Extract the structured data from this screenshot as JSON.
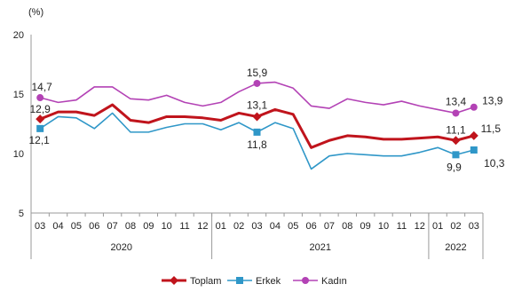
{
  "chart_data": {
    "type": "line",
    "y_unit_label": "(%)",
    "ylim": [
      5,
      20
    ],
    "yticks": [
      5,
      10,
      15,
      20
    ],
    "grid": false,
    "legend_position": "bottom",
    "categories": [
      "03",
      "04",
      "05",
      "06",
      "07",
      "08",
      "09",
      "10",
      "11",
      "12",
      "01",
      "02",
      "03",
      "04",
      "05",
      "06",
      "07",
      "08",
      "09",
      "10",
      "11",
      "12",
      "01",
      "02",
      "03"
    ],
    "year_groups": [
      {
        "label": "2020",
        "start": 0,
        "end": 9
      },
      {
        "label": "2021",
        "start": 10,
        "end": 21
      },
      {
        "label": "2022",
        "start": 22,
        "end": 24
      }
    ],
    "series": [
      {
        "name": "Toplam",
        "color": "#c0141c",
        "marker": "diamond",
        "values": [
          12.9,
          13.5,
          13.5,
          13.2,
          14.1,
          12.8,
          12.6,
          13.1,
          13.1,
          13.0,
          12.8,
          13.4,
          13.1,
          13.7,
          13.3,
          10.5,
          11.1,
          11.5,
          11.4,
          11.2,
          11.2,
          11.3,
          11.4,
          11.1,
          11.5
        ],
        "markers_at": [
          0,
          12,
          23,
          24
        ],
        "labels": [
          {
            "index": 0,
            "text": "12,9"
          },
          {
            "index": 12,
            "text": "13,1"
          },
          {
            "index": 23,
            "text": "11,1"
          },
          {
            "index": 24,
            "text": "11,5"
          }
        ]
      },
      {
        "name": "Erkek",
        "color": "#2f97c8",
        "marker": "square",
        "values": [
          12.1,
          13.1,
          13.0,
          12.1,
          13.4,
          11.8,
          11.8,
          12.2,
          12.5,
          12.5,
          12.0,
          12.6,
          11.8,
          12.6,
          12.1,
          8.7,
          9.8,
          10.0,
          9.9,
          9.8,
          9.8,
          10.1,
          10.5,
          9.9,
          10.3
        ],
        "markers_at": [
          0,
          12,
          23,
          24
        ],
        "labels": [
          {
            "index": 0,
            "text": "12,1"
          },
          {
            "index": 12,
            "text": "11,8"
          },
          {
            "index": 23,
            "text": "9,9"
          },
          {
            "index": 24,
            "text": "10,3"
          }
        ]
      },
      {
        "name": "Kadın",
        "color": "#b342b5",
        "marker": "circle",
        "values": [
          14.7,
          14.3,
          14.5,
          15.6,
          15.6,
          14.6,
          14.5,
          14.9,
          14.3,
          14.0,
          14.3,
          15.2,
          15.9,
          16.0,
          15.5,
          14.0,
          13.8,
          14.6,
          14.3,
          14.1,
          14.4,
          14.0,
          13.7,
          13.4,
          13.9
        ],
        "markers_at": [
          0,
          12,
          23,
          24
        ],
        "labels": [
          {
            "index": 0,
            "text": "14,7"
          },
          {
            "index": 12,
            "text": "15,9"
          },
          {
            "index": 23,
            "text": "13,4"
          },
          {
            "index": 24,
            "text": "13,9"
          }
        ]
      }
    ]
  }
}
